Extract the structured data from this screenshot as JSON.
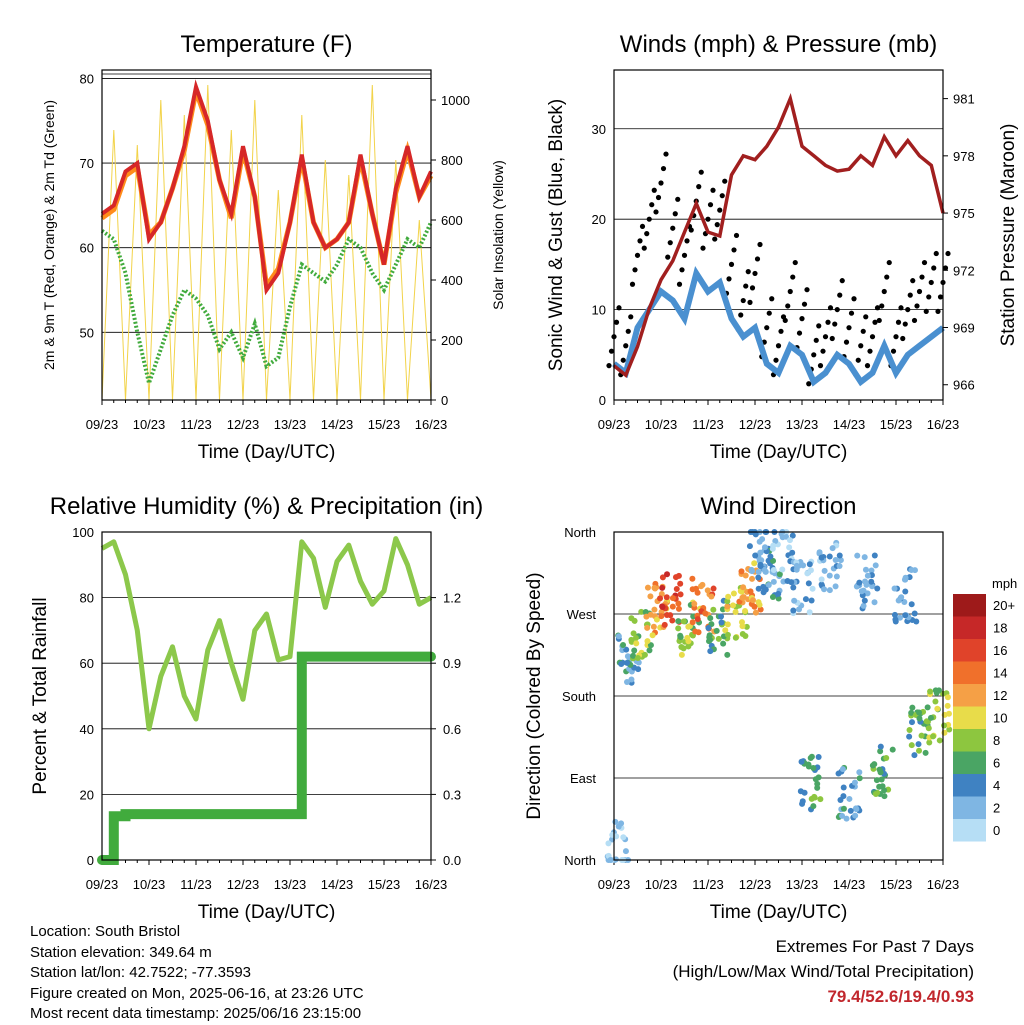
{
  "chart_data": [
    {
      "id": "temperature",
      "type": "line",
      "title": "Temperature (F)",
      "xlabel": "Time (Day/UTC)",
      "ylabel": "2m & 9m T (Red, Orange) & 2m Td (Green)",
      "y2label": "Solar Insolation (Yellow)",
      "x_ticks": [
        "09/23",
        "10/23",
        "11/23",
        "12/23",
        "13/23",
        "14/23",
        "15/23",
        "16/23"
      ],
      "ylim": [
        42,
        81
      ],
      "y_ticks": [
        50,
        60,
        70,
        80
      ],
      "y2lim": [
        0,
        1100
      ],
      "y2_ticks": [
        0,
        200,
        400,
        600,
        800,
        1000
      ],
      "x": [
        0,
        0.25,
        0.5,
        0.75,
        1,
        1.25,
        1.5,
        1.75,
        2,
        2.25,
        2.5,
        2.75,
        3,
        3.25,
        3.5,
        3.75,
        4,
        4.25,
        4.5,
        4.75,
        5,
        5.25,
        5.5,
        5.75,
        6,
        6.25,
        6.5,
        6.75,
        7
      ],
      "series": [
        {
          "name": "2m T",
          "color": "#d62728",
          "values": [
            64,
            65,
            69,
            70,
            61,
            63,
            67,
            72,
            79,
            75,
            68,
            64,
            72,
            66,
            55,
            57,
            63,
            71,
            63,
            60,
            61,
            63,
            71,
            64,
            58,
            67,
            72,
            66,
            69
          ]
        },
        {
          "name": "9m T",
          "color": "#ff8c1a",
          "values": [
            63.5,
            64.5,
            68.5,
            69.5,
            61.5,
            63,
            67,
            71.5,
            78.5,
            74.5,
            68,
            63.5,
            71.5,
            66,
            55.5,
            57.5,
            63,
            70.5,
            63,
            60,
            61,
            63,
            70.5,
            64,
            58,
            66.5,
            71.5,
            66,
            68.5
          ]
        },
        {
          "name": "2m Td",
          "color": "#41ab3d",
          "values": [
            62,
            61,
            57,
            50,
            44,
            48,
            52,
            55,
            54,
            52,
            48,
            50,
            47,
            51,
            46,
            47,
            53,
            58,
            57,
            56,
            58,
            61,
            60,
            57,
            55,
            58,
            61,
            60,
            63
          ]
        },
        {
          "name": "Solar Insolation",
          "color": "#f2d34a",
          "values": [
            0,
            900,
            0,
            850,
            0,
            1000,
            0,
            950,
            0,
            1050,
            0,
            900,
            0,
            1000,
            0,
            700,
            0,
            950,
            0,
            800,
            0,
            750,
            0,
            1050,
            0,
            800,
            0,
            600,
            0
          ]
        }
      ]
    },
    {
      "id": "winds",
      "type": "scatter",
      "title": "Winds (mph) & Pressure (mb)",
      "xlabel": "Time (Day/UTC)",
      "ylabel": "Sonic Wind & Gust (Blue, Black)",
      "y2label": "Station Pressure (Maroon)",
      "x_ticks": [
        "09/23",
        "10/23",
        "11/23",
        "12/23",
        "13/23",
        "14/23",
        "15/23",
        "16/23"
      ],
      "ylim": [
        0,
        36.5
      ],
      "y_ticks": [
        0,
        10,
        20,
        30
      ],
      "y2lim": [
        965.2,
        982.5
      ],
      "y2_ticks": [
        966,
        969,
        972,
        975,
        978,
        981
      ],
      "x": [
        0,
        0.25,
        0.5,
        0.75,
        1,
        1.25,
        1.5,
        1.75,
        2,
        2.25,
        2.5,
        2.75,
        3,
        3.25,
        3.5,
        3.75,
        4,
        4.25,
        4.5,
        4.75,
        5,
        5.25,
        5.5,
        5.75,
        6,
        6.25,
        6.5,
        6.75,
        7
      ],
      "series": [
        {
          "name": "Sonic Wind",
          "color": "#4a90d0",
          "values": [
            4,
            3,
            8,
            10,
            12,
            11,
            9,
            14,
            12,
            13,
            9,
            7,
            8,
            4,
            3,
            6,
            5,
            2,
            3,
            5,
            4,
            2,
            3,
            6,
            3,
            5,
            6,
            7,
            8
          ]
        },
        {
          "name": "Gust",
          "color": "#000000",
          "values": [
            7,
            6,
            16,
            20,
            24,
            19,
            16,
            22,
            20,
            21,
            15,
            11,
            14,
            8,
            6,
            12,
            9,
            5,
            7,
            10,
            8,
            6,
            7,
            12,
            7,
            10,
            12,
            13,
            13
          ]
        },
        {
          "name": "Station Pressure",
          "color": "#a11f1f",
          "values": [
            967,
            966.5,
            968,
            970,
            971.5,
            972.5,
            974,
            975.5,
            974,
            973.8,
            977,
            978,
            977.8,
            978.5,
            979.5,
            981,
            978.5,
            978,
            977.5,
            977.2,
            977.3,
            978,
            977.5,
            979,
            978,
            978.8,
            978,
            977.5,
            975
          ]
        }
      ]
    },
    {
      "id": "humidity",
      "type": "line",
      "title": "Relative Humidity (%) & Precipitation (in)",
      "xlabel": "Time (Day/UTC)",
      "ylabel": "Percent & Total Rainfall",
      "x_ticks": [
        "09/23",
        "10/23",
        "11/23",
        "12/23",
        "13/23",
        "14/23",
        "15/23",
        "16/23"
      ],
      "ylim": [
        0,
        100
      ],
      "y_ticks": [
        0,
        20,
        40,
        60,
        80,
        100
      ],
      "y2lim": [
        0,
        1.5
      ],
      "y2_ticks": [
        "0.0",
        "0.3",
        "0.6",
        "0.9",
        "1.2"
      ],
      "x": [
        0,
        0.25,
        0.5,
        0.75,
        1,
        1.25,
        1.5,
        1.75,
        2,
        2.25,
        2.5,
        2.75,
        3,
        3.25,
        3.5,
        3.75,
        4,
        4.25,
        4.5,
        4.75,
        5,
        5.25,
        5.5,
        5.75,
        6,
        6.25,
        6.5,
        6.75,
        7
      ],
      "series": [
        {
          "name": "Relative Humidity",
          "color": "#8cc84b",
          "values": [
            95,
            97,
            87,
            70,
            40,
            56,
            65,
            50,
            43,
            64,
            73,
            60,
            49,
            70,
            75,
            61,
            62,
            97,
            92,
            77,
            91,
            96,
            85,
            78,
            82,
            98,
            90,
            78,
            80
          ]
        },
        {
          "name": "Total Rainfall",
          "color": "#41ab3d",
          "values": [
            0.0,
            0.2,
            0.21,
            0.21,
            0.21,
            0.21,
            0.21,
            0.21,
            0.21,
            0.21,
            0.21,
            0.21,
            0.21,
            0.21,
            0.21,
            0.21,
            0.21,
            0.93,
            0.93,
            0.93,
            0.93,
            0.93,
            0.93,
            0.93,
            0.93,
            0.93,
            0.93,
            0.93,
            0.93
          ]
        }
      ]
    },
    {
      "id": "direction",
      "type": "scatter",
      "title": "Wind Direction",
      "xlabel": "Time (Day/UTC)",
      "ylabel": "Direction (Colored By Speed)",
      "x_ticks": [
        "09/23",
        "10/23",
        "11/23",
        "12/23",
        "13/23",
        "14/23",
        "15/23",
        "16/23"
      ],
      "y_ticks": [
        "North",
        "East",
        "South",
        "West",
        "North"
      ],
      "ylim": [
        0,
        360
      ],
      "colorbar": {
        "title": "mph",
        "labels": [
          "20+",
          "18",
          "16",
          "14",
          "12",
          "10",
          "8",
          "6",
          "4",
          "2",
          "0"
        ],
        "colors": [
          "#9e1a1a",
          "#c62828",
          "#e0432a",
          "#f0702b",
          "#f5a046",
          "#e8dc4a",
          "#8dc63f",
          "#4aa564",
          "#3f82c2",
          "#7fb6e3",
          "#b6def5"
        ]
      },
      "clusters": [
        {
          "x": 0.3,
          "dir": 220,
          "speed": 4
        },
        {
          "x": 0.6,
          "dir": 250,
          "speed": 8
        },
        {
          "x": 0.9,
          "dir": 275,
          "speed": 12
        },
        {
          "x": 1.2,
          "dir": 285,
          "speed": 16
        },
        {
          "x": 1.6,
          "dir": 255,
          "speed": 8
        },
        {
          "x": 1.9,
          "dir": 280,
          "speed": 14
        },
        {
          "x": 2.2,
          "dir": 255,
          "speed": 6
        },
        {
          "x": 2.6,
          "dir": 270,
          "speed": 10
        },
        {
          "x": 2.9,
          "dir": 300,
          "speed": 12
        },
        {
          "x": 3.3,
          "dir": 315,
          "speed": 4
        },
        {
          "x": 3.6,
          "dir": 335,
          "speed": 2
        },
        {
          "x": 4.0,
          "dir": 300,
          "speed": 2
        },
        {
          "x": 4.2,
          "dir": 85,
          "speed": 6
        },
        {
          "x": 4.6,
          "dir": 320,
          "speed": 2
        },
        {
          "x": 5.0,
          "dir": 75,
          "speed": 4
        },
        {
          "x": 5.4,
          "dir": 305,
          "speed": 3
        },
        {
          "x": 5.7,
          "dir": 95,
          "speed": 6
        },
        {
          "x": 6.2,
          "dir": 290,
          "speed": 3
        },
        {
          "x": 6.5,
          "dir": 145,
          "speed": 6
        },
        {
          "x": 6.9,
          "dir": 160,
          "speed": 8
        },
        {
          "x": 0.1,
          "dir": 15,
          "speed": 1
        },
        {
          "x": 3.1,
          "dir": 345,
          "speed": 3
        }
      ]
    }
  ],
  "info": {
    "location": "Location: South Bristol",
    "elevation": "Station elevation: 349.64 m",
    "latlon": "Station lat/lon: 42.7522; -77.3593",
    "created": "Figure created on Mon, 2025-06-16, at 23:26 UTC",
    "timestamp": "Most recent data timestamp: 2025/06/16 23:15:00"
  },
  "extremes": {
    "heading": "Extremes For Past 7 Days",
    "subheading": "(High/Low/Max Wind/Total Precipitation)",
    "values": "79.4/52.6/19.4/0.93"
  }
}
